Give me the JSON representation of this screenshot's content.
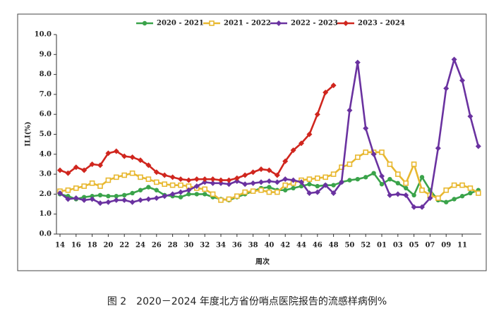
{
  "chart_data": {
    "type": "line",
    "caption": "图 2　2020－2024 年度北方省份哨点医院报告的流感样病例%",
    "ylabel": "ILI(%)",
    "xlabel": "周次",
    "categories": [
      "14",
      null,
      "16",
      null,
      "18",
      null,
      "20",
      null,
      "22",
      null,
      "24",
      null,
      "26",
      null,
      "28",
      null,
      "30",
      null,
      "32",
      null,
      "34",
      null,
      "36",
      null,
      "38",
      null,
      "40",
      null,
      "42",
      null,
      "44",
      null,
      "46",
      null,
      "48",
      null,
      "50",
      null,
      "52",
      null,
      "01",
      null,
      "03",
      null,
      "05",
      null,
      "07",
      null,
      "09",
      null,
      "11",
      null,
      null
    ],
    "ylim": [
      0,
      10
    ],
    "yticks": [
      {
        "value": 0,
        "label": "0.0"
      },
      {
        "value": 1,
        "label": "1.0"
      },
      {
        "value": 2,
        "label": "2.0"
      },
      {
        "value": 3,
        "label": "3.0"
      },
      {
        "value": 4,
        "label": "4.0"
      },
      {
        "value": 5,
        "label": "5.0"
      },
      {
        "value": 6,
        "label": "6.0"
      },
      {
        "value": 7,
        "label": "7.0"
      },
      {
        "value": 8,
        "label": "8.0"
      },
      {
        "value": 9,
        "label": "9.0"
      },
      {
        "value": 10,
        "label": "10.0"
      }
    ],
    "legend": "top",
    "series": [
      {
        "name": "2020 - 2021",
        "color": "#3aa34a",
        "marker": "circle",
        "values": [
          2.0,
          1.9,
          1.75,
          1.85,
          1.9,
          1.95,
          1.9,
          1.9,
          1.95,
          2.05,
          2.2,
          2.35,
          2.2,
          1.95,
          1.9,
          1.85,
          2.0,
          2.0,
          2.0,
          1.85,
          1.75,
          1.7,
          1.85,
          2.0,
          2.15,
          2.3,
          2.35,
          2.2,
          2.2,
          2.3,
          2.4,
          2.5,
          2.4,
          2.45,
          2.45,
          2.6,
          2.7,
          2.75,
          2.85,
          3.05,
          2.5,
          2.75,
          2.55,
          2.3,
          1.95,
          2.85,
          2.2,
          1.7,
          1.6,
          1.75,
          1.9,
          2.05,
          2.2
        ]
      },
      {
        "name": "2021 - 2022",
        "color": "#e8b830",
        "marker": "square",
        "values": [
          2.15,
          2.2,
          2.3,
          2.4,
          2.55,
          2.4,
          2.7,
          2.85,
          2.95,
          3.05,
          2.85,
          2.75,
          2.6,
          2.5,
          2.45,
          2.45,
          2.4,
          2.3,
          2.25,
          2.0,
          1.7,
          1.75,
          1.9,
          2.1,
          2.15,
          2.2,
          2.1,
          2.1,
          2.45,
          2.55,
          2.7,
          2.75,
          2.8,
          2.85,
          3.0,
          3.35,
          3.5,
          3.85,
          4.1,
          4.1,
          4.1,
          3.5,
          3.0,
          2.55,
          3.5,
          2.2,
          1.95,
          1.8,
          2.2,
          2.45,
          2.45,
          2.3,
          2.05
        ]
      },
      {
        "name": "2022 - 2023",
        "color": "#6a32a0",
        "marker": "diamond",
        "values": [
          2.05,
          1.75,
          1.8,
          1.7,
          1.75,
          1.55,
          1.6,
          1.7,
          1.7,
          1.6,
          1.7,
          1.75,
          1.8,
          1.9,
          2.0,
          2.1,
          2.2,
          2.4,
          2.6,
          2.55,
          2.55,
          2.5,
          2.65,
          2.5,
          2.55,
          2.6,
          2.65,
          2.6,
          2.75,
          2.7,
          2.6,
          2.05,
          2.1,
          2.45,
          2.05,
          2.6,
          6.2,
          8.6,
          5.3,
          4.0,
          2.9,
          1.95,
          2.0,
          1.95,
          1.35,
          1.35,
          1.8,
          4.3,
          7.3,
          8.75,
          7.7,
          5.9,
          4.4
        ]
      },
      {
        "name": "2023 - 2024",
        "color": "#d0261e",
        "marker": "diamond",
        "values": [
          3.2,
          3.05,
          3.35,
          3.2,
          3.5,
          3.45,
          4.05,
          4.15,
          3.9,
          3.85,
          3.7,
          3.45,
          3.1,
          2.95,
          2.85,
          2.75,
          2.7,
          2.75,
          2.75,
          2.75,
          2.7,
          2.7,
          2.8,
          2.95,
          3.1,
          3.25,
          3.2,
          2.95,
          3.65,
          4.2,
          4.55,
          5.0,
          6.0,
          7.1,
          7.45,
          null,
          null,
          null,
          null,
          null,
          null,
          null,
          null,
          null,
          null,
          null,
          null,
          null,
          null,
          null,
          null,
          null,
          null
        ]
      }
    ]
  }
}
